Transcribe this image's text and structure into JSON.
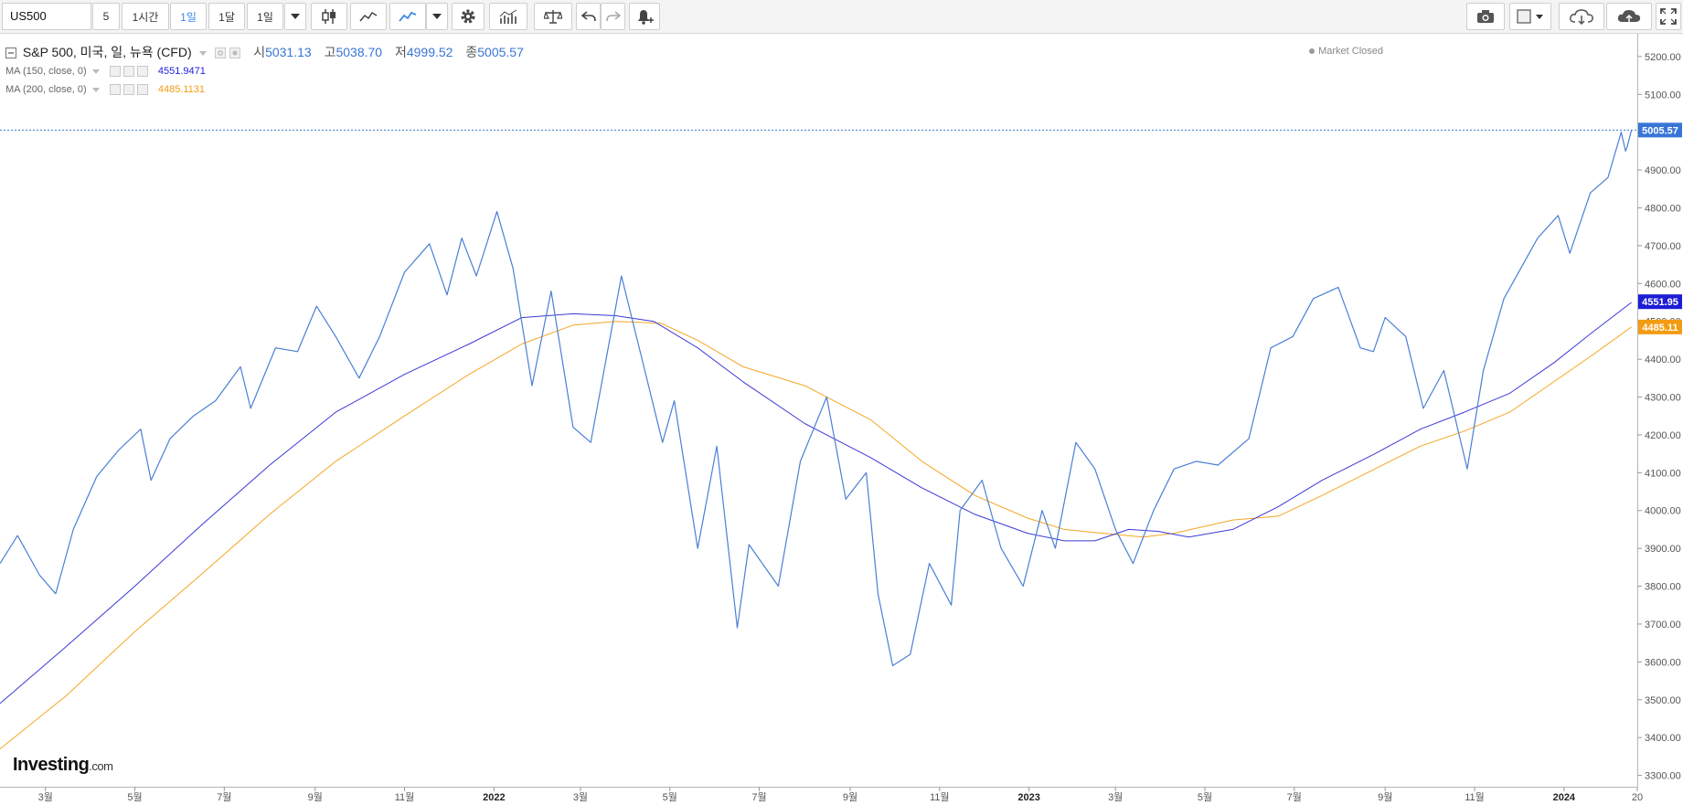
{
  "toolbar": {
    "symbol": "US500",
    "interval_value": "5",
    "interval_buttons": [
      "1시간",
      "1일",
      "1달",
      "1일"
    ],
    "active_interval": "1일"
  },
  "legend": {
    "instrument": "S&P 500, 미국, 일, 뉴욕 (CFD)",
    "open_label": "시",
    "open": "5031.13",
    "high_label": "고",
    "high": "5038.70",
    "low_label": "저",
    "low": "4999.52",
    "close_label": "종",
    "close": "5005.57"
  },
  "indicators": [
    {
      "label": "MA (150, close, 0)",
      "value": "4551.9471",
      "color": "#2222dd"
    },
    {
      "label": "MA (200, close, 0)",
      "value": "4485.1131",
      "color": "#f39c12"
    }
  ],
  "market_status": "Market Closed",
  "brand": {
    "name": "Investing",
    "suffix": ".com"
  },
  "colors": {
    "price": "#4a7fd6",
    "ma150": "#3a3ad8",
    "ma200": "#f5a623",
    "last_price": "#3875d7"
  },
  "chart_data": {
    "type": "line",
    "y_axis": {
      "min": 3270,
      "max": 5260,
      "ticks": [
        3300,
        3400,
        3500,
        3600,
        3700,
        3800,
        3900,
        4000,
        4100,
        4200,
        4300,
        4400,
        4500,
        4600,
        4700,
        4800,
        4900,
        5000,
        5100,
        5200
      ]
    },
    "x_tick_labels": [
      "3월",
      "5월",
      "7월",
      "9월",
      "11월",
      "2022",
      "3월",
      "5월",
      "7월",
      "9월",
      "11월",
      "2023",
      "3월",
      "5월",
      "7월",
      "9월",
      "11월",
      "2024",
      "20"
    ],
    "x_range": [
      "2021-01-29",
      "2024-02-20"
    ],
    "x_ticks": [
      "2021-03-01",
      "2021-05-01",
      "2021-07-01",
      "2021-09-01",
      "2021-11-01",
      "2022-01-01",
      "2022-03-01",
      "2022-05-01",
      "2022-07-01",
      "2022-09-01",
      "2022-11-01",
      "2023-01-01",
      "2023-03-01",
      "2023-05-01",
      "2023-07-01",
      "2023-09-01",
      "2023-11-01",
      "2024-01-01",
      "2024-02-20"
    ],
    "last_price_labels": [
      "5005.57",
      "4551.95",
      "4485.11"
    ],
    "series": [
      {
        "key": "price",
        "dates": [
          "2021-01-29",
          "2021-02-10",
          "2021-02-25",
          "2021-03-08",
          "2021-03-20",
          "2021-04-05",
          "2021-04-20",
          "2021-05-05",
          "2021-05-12",
          "2021-05-25",
          "2021-06-10",
          "2021-06-25",
          "2021-07-12",
          "2021-07-19",
          "2021-08-05",
          "2021-08-20",
          "2021-09-02",
          "2021-09-15",
          "2021-10-01",
          "2021-10-15",
          "2021-11-01",
          "2021-11-18",
          "2021-11-30",
          "2021-12-10",
          "2021-12-20",
          "2022-01-03",
          "2022-01-14",
          "2022-01-27",
          "2022-02-09",
          "2022-02-24",
          "2022-03-08",
          "2022-03-29",
          "2022-04-12",
          "2022-04-26",
          "2022-05-04",
          "2022-05-20",
          "2022-06-02",
          "2022-06-16",
          "2022-06-24",
          "2022-07-14",
          "2022-07-29",
          "2022-08-16",
          "2022-08-29",
          "2022-09-12",
          "2022-09-20",
          "2022-09-30",
          "2022-10-12",
          "2022-10-25",
          "2022-11-09",
          "2022-11-15",
          "2022-11-30",
          "2022-12-13",
          "2022-12-28",
          "2023-01-10",
          "2023-01-19",
          "2023-02-02",
          "2023-02-15",
          "2023-03-01",
          "2023-03-13",
          "2023-03-27",
          "2023-04-10",
          "2023-04-25",
          "2023-05-10",
          "2023-05-31",
          "2023-06-15",
          "2023-06-30",
          "2023-07-14",
          "2023-07-31",
          "2023-08-15",
          "2023-08-24",
          "2023-09-01",
          "2023-09-15",
          "2023-09-27",
          "2023-10-11",
          "2023-10-27",
          "2023-11-07",
          "2023-11-21",
          "2023-12-14",
          "2023-12-28",
          "2024-01-05",
          "2024-01-19",
          "2024-01-31",
          "2024-02-09",
          "2024-02-12",
          "2024-02-13",
          "2024-02-16"
        ],
        "values": [
          3860,
          3934,
          3829,
          3780,
          3950,
          4090,
          4160,
          4215,
          4080,
          4190,
          4250,
          4290,
          4380,
          4270,
          4430,
          4420,
          4540,
          4460,
          4350,
          4460,
          4630,
          4705,
          4570,
          4720,
          4620,
          4790,
          4640,
          4330,
          4580,
          4220,
          4180,
          4620,
          4400,
          4180,
          4290,
          3900,
          4170,
          3690,
          3910,
          3800,
          4130,
          4300,
          4030,
          4100,
          3780,
          3590,
          3620,
          3860,
          3750,
          4000,
          4080,
          3900,
          3800,
          4000,
          3900,
          4180,
          4110,
          3950,
          3860,
          4000,
          4110,
          4130,
          4120,
          4190,
          4430,
          4460,
          4560,
          4590,
          4430,
          4420,
          4510,
          4460,
          4270,
          4370,
          4110,
          4370,
          4560,
          4720,
          4780,
          4680,
          4840,
          4880,
          5000,
          4950,
          4960,
          5005
        ]
      },
      {
        "key": "ma150",
        "dates": [
          "2021-01-29",
          "2021-03-15",
          "2021-05-01",
          "2021-06-15",
          "2021-08-01",
          "2021-09-15",
          "2021-11-01",
          "2021-12-15",
          "2022-01-20",
          "2022-02-24",
          "2022-03-25",
          "2022-04-20",
          "2022-05-20",
          "2022-06-20",
          "2022-08-01",
          "2022-09-15",
          "2022-10-20",
          "2022-11-25",
          "2022-12-31",
          "2023-01-25",
          "2023-02-15",
          "2023-03-10",
          "2023-03-30",
          "2023-04-20",
          "2023-05-20",
          "2023-06-20",
          "2023-07-20",
          "2023-08-25",
          "2023-09-25",
          "2023-10-25",
          "2023-11-25",
          "2023-12-25",
          "2024-01-20",
          "2024-02-16"
        ],
        "values": [
          3490,
          3640,
          3800,
          3960,
          4120,
          4260,
          4360,
          4440,
          4510,
          4520,
          4515,
          4500,
          4430,
          4340,
          4230,
          4140,
          4060,
          3990,
          3940,
          3920,
          3920,
          3950,
          3945,
          3930,
          3950,
          4010,
          4080,
          4150,
          4215,
          4260,
          4310,
          4390,
          4470,
          4550
        ]
      },
      {
        "key": "ma200",
        "dates": [
          "2021-01-29",
          "2021-03-15",
          "2021-05-01",
          "2021-06-15",
          "2021-08-01",
          "2021-09-15",
          "2021-11-01",
          "2021-12-15",
          "2022-01-20",
          "2022-02-24",
          "2022-03-25",
          "2022-04-25",
          "2022-05-20",
          "2022-06-20",
          "2022-08-01",
          "2022-09-15",
          "2022-10-20",
          "2022-11-25",
          "2022-12-31",
          "2023-01-25",
          "2023-02-20",
          "2023-03-20",
          "2023-04-10",
          "2023-05-20",
          "2023-06-20",
          "2023-07-20",
          "2023-08-25",
          "2023-09-25",
          "2023-10-25",
          "2023-11-25",
          "2023-12-25",
          "2024-01-20",
          "2024-02-16"
        ],
        "values": [
          3370,
          3510,
          3680,
          3830,
          3990,
          4130,
          4250,
          4360,
          4440,
          4490,
          4500,
          4495,
          4450,
          4380,
          4330,
          4240,
          4130,
          4040,
          3980,
          3950,
          3940,
          3930,
          3940,
          3975,
          3985,
          4040,
          4110,
          4170,
          4210,
          4260,
          4340,
          4410,
          4485
        ]
      }
    ]
  }
}
